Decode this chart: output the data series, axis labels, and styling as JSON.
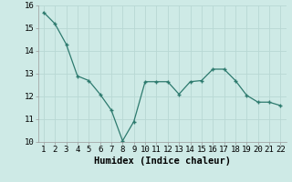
{
  "x": [
    1,
    2,
    3,
    4,
    5,
    6,
    7,
    8,
    9,
    10,
    11,
    12,
    13,
    14,
    15,
    16,
    17,
    18,
    19,
    20,
    21,
    22
  ],
  "y": [
    15.7,
    15.2,
    14.3,
    12.9,
    12.7,
    12.1,
    11.4,
    10.05,
    10.9,
    12.65,
    12.65,
    12.65,
    12.1,
    12.65,
    12.7,
    13.2,
    13.2,
    12.7,
    12.05,
    11.75,
    11.75,
    11.6
  ],
  "xlabel": "Humidex (Indice chaleur)",
  "ylim": [
    10,
    16
  ],
  "xlim_min": 0.5,
  "xlim_max": 22.5,
  "yticks": [
    10,
    11,
    12,
    13,
    14,
    15,
    16
  ],
  "xticks": [
    1,
    2,
    3,
    4,
    5,
    6,
    7,
    8,
    9,
    10,
    11,
    12,
    13,
    14,
    15,
    16,
    17,
    18,
    19,
    20,
    21,
    22
  ],
  "line_color": "#2d7a6e",
  "marker_color": "#2d7a6e",
  "bg_color": "#ceeae6",
  "grid_color": "#b8d8d4",
  "xlabel_fontsize": 7.5,
  "tick_fontsize": 6.5,
  "fig_width": 3.2,
  "fig_height": 2.0,
  "dpi": 100
}
